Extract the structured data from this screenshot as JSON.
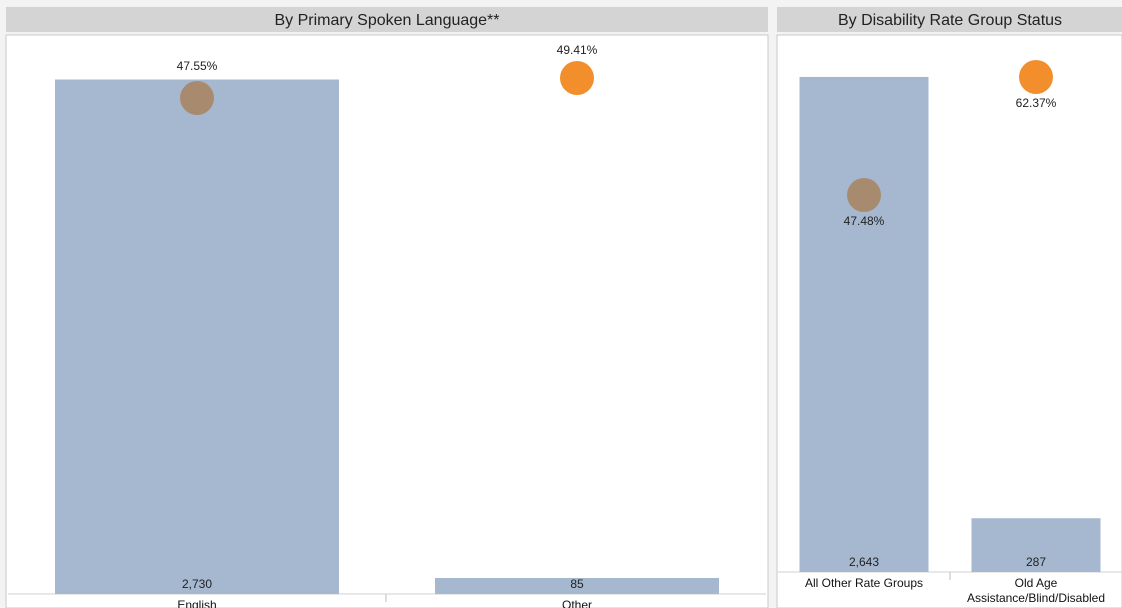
{
  "chart_data": [
    {
      "type": "bar",
      "title": "By Primary Spoken Language**",
      "categories": [
        "English",
        "Other"
      ],
      "series": [
        {
          "values": [
            2730,
            85
          ],
          "value_labels": [
            "2,730",
            "85"
          ]
        },
        {
          "values": [
            47.55,
            49.41
          ],
          "value_labels": [
            "47.55%",
            "49.41%"
          ],
          "mark": "circle",
          "unit": "%"
        }
      ],
      "colors": {
        "bar": "#a5b8d0",
        "circles": [
          "#a88b6e",
          "#f28e2b"
        ]
      },
      "ylim": [
        0,
        2860
      ]
    },
    {
      "type": "bar",
      "title": "By Disability Rate Group Status",
      "categories": [
        "All Other Rate Groups",
        "Old Age Assistance/Blind/Disabled"
      ],
      "series": [
        {
          "values": [
            2643,
            287
          ],
          "value_labels": [
            "2,643",
            "287"
          ]
        },
        {
          "values": [
            47.48,
            62.37
          ],
          "value_labels": [
            "47.48%",
            "62.37%"
          ],
          "mark": "circle",
          "unit": "%"
        }
      ],
      "colors": {
        "bar": "#a5b8d0",
        "circles": [
          "#a88b6e",
          "#f28e2b"
        ]
      },
      "ylim": [
        0,
        2760
      ]
    }
  ]
}
